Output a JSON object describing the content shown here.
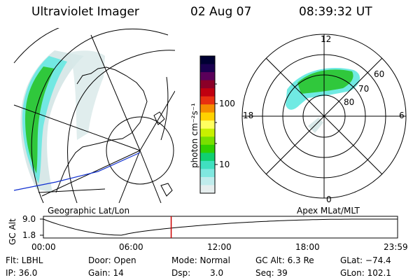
{
  "header": {
    "title": "Ultraviolet Imager",
    "date": "02 Aug 07",
    "time": "08:39:32 UT"
  },
  "left_map": {
    "label": "Geographic Lat/Lon"
  },
  "right_map": {
    "label": "Apex MLat/MLT",
    "mlt_labels": [
      "12",
      "18",
      "6",
      "0"
    ],
    "lat_labels": [
      "60",
      "70",
      "80"
    ]
  },
  "colorbar": {
    "unit_label": "photon cm⁻²s⁻¹",
    "ticks": [
      "100",
      "10"
    ],
    "colors": [
      "#000033",
      "#1a0050",
      "#5a005a",
      "#8b0028",
      "#c00010",
      "#e83010",
      "#f58c00",
      "#ffd200",
      "#ffff60",
      "#c8f000",
      "#78e000",
      "#30d000",
      "#10d070",
      "#40e0c0",
      "#80e8e0",
      "#c0ecec",
      "#e6eeee"
    ]
  },
  "altitude_plot": {
    "axis_label": "GC Alt",
    "y_ticks": [
      "9.0",
      "1.8"
    ],
    "x_ticks": [
      "00:00",
      "06:00",
      "12:00",
      "18:00",
      "23:59"
    ],
    "marker_time": "08:39:32",
    "marker_color": "#cc0000"
  },
  "info": {
    "flt": "Flt: LBHL",
    "ip": "IP: 36.0",
    "door": "Door: Open",
    "gain": "Gain: 14",
    "mode": "Mode: Normal",
    "dsp_label": "Dsp:",
    "dsp_value": "3.0",
    "gc_alt": "GC Alt: 6.3 Re",
    "seq": "Seq: 39",
    "glat": "GLat: −74.4",
    "glon": "GLon: 102.1"
  },
  "colors": {
    "aurora_green": "#30c83c",
    "aurora_cyan": "#60e8e0",
    "aurora_light": "#d8e8e8",
    "coast_blue": "#1030d0"
  }
}
